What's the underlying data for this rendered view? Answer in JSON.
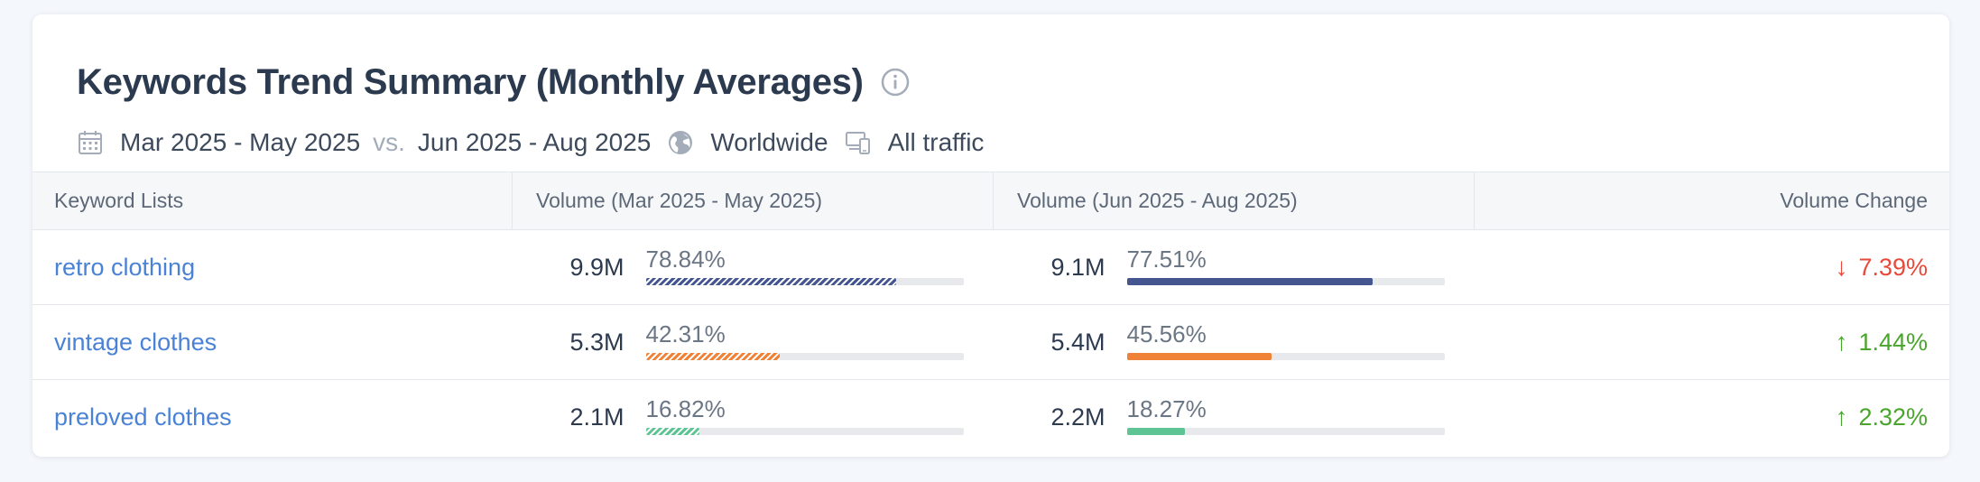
{
  "header": {
    "title": "Keywords Trend Summary (Monthly Averages)",
    "period_a": "Mar 2025 - May 2025",
    "vs": "vs.",
    "period_b": "Jun 2025 - Aug 2025",
    "region": "Worldwide",
    "traffic": "All traffic"
  },
  "table": {
    "columns": [
      "Keyword Lists",
      "Volume (Mar 2025 - May 2025)",
      "Volume (Jun 2025 - Aug 2025)",
      "Volume Change"
    ],
    "rows": [
      {
        "keyword": "retro clothing",
        "vol_a": "9.9M",
        "pct_a": "78.84%",
        "share_a": 0.7884,
        "vol_b": "9.1M",
        "pct_b": "77.51%",
        "share_b": 0.7751,
        "change": "7.39%",
        "direction": "down",
        "color": "#43568f"
      },
      {
        "keyword": "vintage clothes",
        "vol_a": "5.3M",
        "pct_a": "42.31%",
        "share_a": 0.4231,
        "vol_b": "5.4M",
        "pct_b": "45.56%",
        "share_b": 0.4556,
        "change": "1.44%",
        "direction": "up",
        "color": "#ef8236"
      },
      {
        "keyword": "preloved clothes",
        "vol_a": "2.1M",
        "pct_a": "16.82%",
        "share_a": 0.1682,
        "vol_b": "2.2M",
        "pct_b": "18.27%",
        "share_b": 0.1827,
        "change": "2.32%",
        "direction": "up",
        "color": "#5ec493"
      }
    ]
  },
  "colors": {
    "up": "#4aa52e",
    "down": "#e8493a",
    "link": "#4a82d6"
  },
  "icons": {
    "arrow_up": "↑",
    "arrow_down": "↓"
  }
}
